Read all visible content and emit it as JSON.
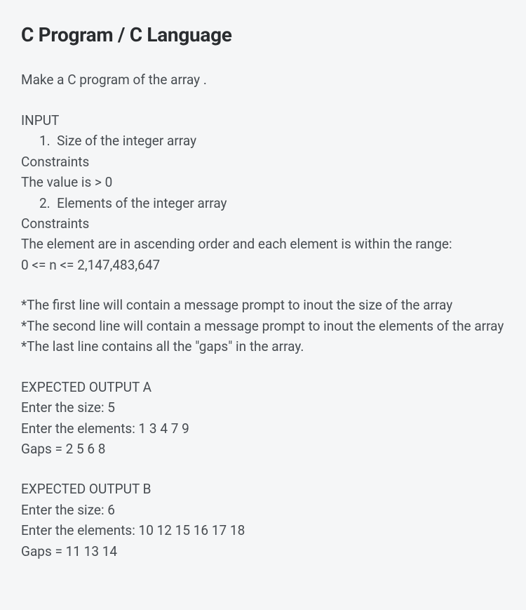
{
  "title": "C Program / C Language",
  "intro": "Make a C program of the array .",
  "input": {
    "label": "INPUT",
    "item1_num": "1.",
    "item1_text": "Size of the integer array",
    "constraints1_label": "Constraints",
    "constraints1_text": "The value is > 0",
    "item2_num": "2.",
    "item2_text": "Elements of the integer array",
    "constraints2_label": "Constraints",
    "constraints2_text1": "The element are in ascending order and each element is within the range:",
    "constraints2_text2": "0 <= n <= 2,147,483,647"
  },
  "notes": {
    "n1": "*The first line will contain a message prompt to inout the size of the array",
    "n2": "*The second line will contain a message prompt to inout the elements of the array",
    "n3": "*The last line contains all the \"gaps\" in the array."
  },
  "outputA": {
    "label": "EXPECTED OUTPUT A",
    "l1": "Enter the size: 5",
    "l2": "Enter the elements: 1 3 4 7 9",
    "l3": "Gaps = 2 5 6 8"
  },
  "outputB": {
    "label": "EXPECTED OUTPUT B",
    "l1": "Enter the size: 6",
    "l2": "Enter the elements: 10 12 15 16 17 18",
    "l3": "Gaps = 11 13 14"
  }
}
